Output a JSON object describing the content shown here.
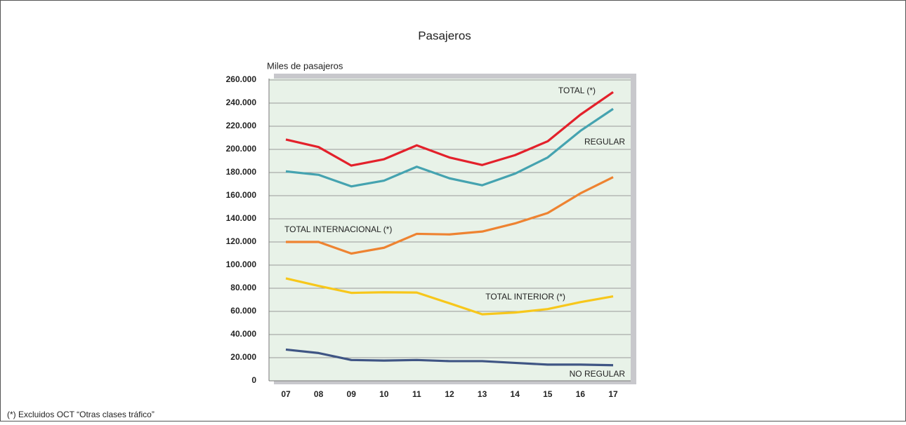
{
  "chart_data": {
    "type": "line",
    "title": "Pasajeros",
    "y_label": "Miles de pasajeros",
    "footnote": "(*) Excluidos OCT “Otras clases tráfico”",
    "categories": [
      "07",
      "08",
      "09",
      "10",
      "11",
      "12",
      "13",
      "14",
      "15",
      "16",
      "17"
    ],
    "series": [
      {
        "name": "TOTAL (*)",
        "color": "#e3212b",
        "values": [
          208500,
          202000,
          186000,
          191500,
          203500,
          193000,
          186500,
          195000,
          207000,
          230000,
          249500
        ]
      },
      {
        "name": "REGULAR",
        "color": "#45a3b0",
        "values": [
          181000,
          178000,
          168000,
          173000,
          185000,
          175000,
          169000,
          179000,
          193000,
          216000,
          235000
        ]
      },
      {
        "name": "TOTAL INTERNACIONAL (*)",
        "color": "#ee8331",
        "values": [
          120000,
          120000,
          110000,
          115000,
          127000,
          126500,
          129000,
          136000,
          145000,
          162000,
          176000
        ]
      },
      {
        "name": "TOTAL INTERIOR (*)",
        "color": "#f7c71b",
        "values": [
          88500,
          82000,
          76000,
          76500,
          76300,
          67000,
          57500,
          59000,
          62000,
          68000,
          73000
        ]
      },
      {
        "name": "NO REGULAR",
        "color": "#3f5584",
        "values": [
          27000,
          24000,
          18000,
          17500,
          18000,
          17000,
          17000,
          15500,
          14000,
          14000,
          13500
        ]
      }
    ],
    "ylim": [
      0,
      260000
    ],
    "yticks": [
      0,
      {
        "value": 20000,
        "label": "20.000"
      },
      {
        "value": 40000,
        "label": "40.000"
      },
      {
        "value": 60000,
        "label": "60.000"
      },
      {
        "value": 80000,
        "label": "80.000"
      },
      {
        "value": 100000,
        "label": "100.000"
      },
      {
        "value": 120000,
        "label": "120.000"
      },
      {
        "value": 140000,
        "label": "140.000"
      },
      {
        "value": 160000,
        "label": "160.000"
      },
      {
        "value": 180000,
        "label": "180.000"
      },
      {
        "value": 200000,
        "label": "200.000"
      },
      {
        "value": 220000,
        "label": "220.000"
      },
      {
        "value": 240000,
        "label": "240.000"
      },
      {
        "value": 260000,
        "label": "260.000"
      }
    ],
    "grid": true
  }
}
